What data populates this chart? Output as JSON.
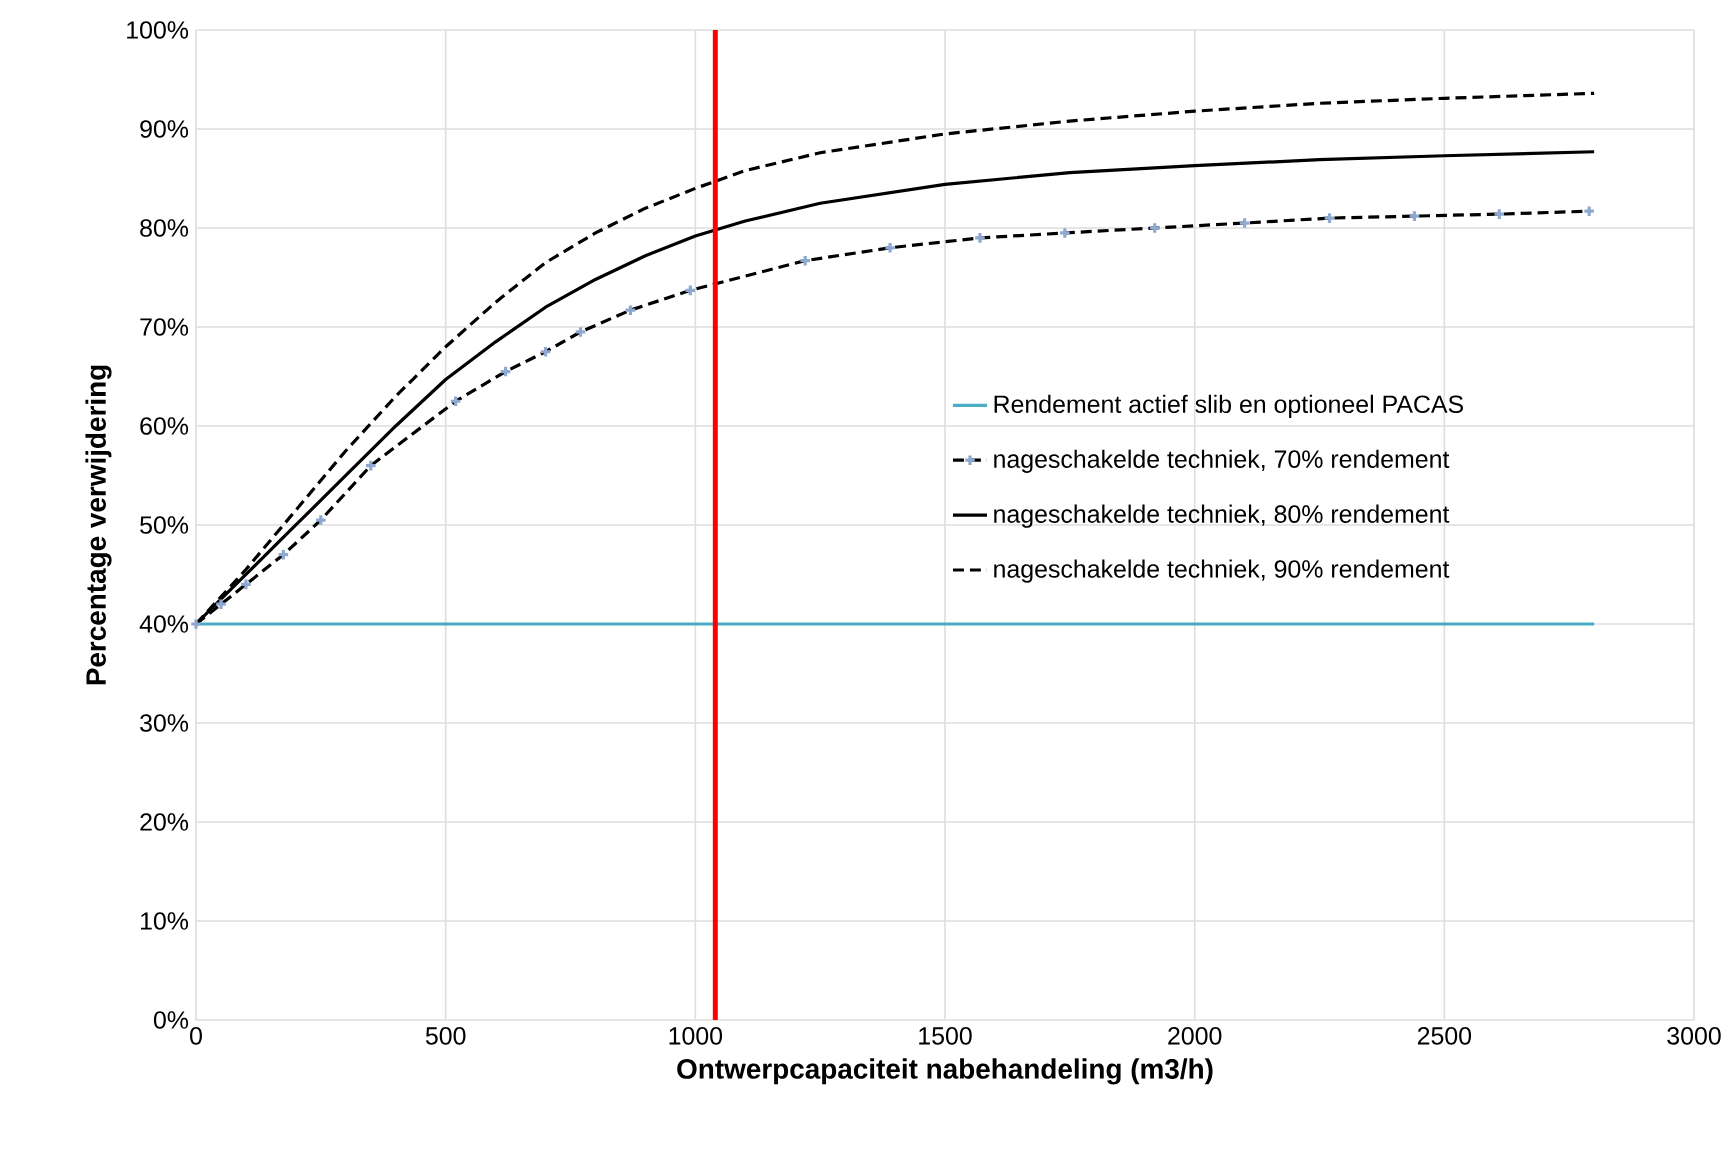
{
  "chart_data": {
    "type": "line",
    "xlabel": "Ontwerpcapaciteit nabehandeling (m3/h)",
    "ylabel": "Percentage verwijdering",
    "xlim": [
      0,
      3000
    ],
    "xticks": [
      0,
      500,
      1000,
      1500,
      2000,
      2500,
      3000
    ],
    "ylim": [
      0,
      100
    ],
    "yticks": [
      {
        "value": 0,
        "label": "0%"
      },
      {
        "value": 10,
        "label": "10%"
      },
      {
        "value": 20,
        "label": "20%"
      },
      {
        "value": 30,
        "label": "30%"
      },
      {
        "value": 40,
        "label": "40%"
      },
      {
        "value": 50,
        "label": "50%"
      },
      {
        "value": 60,
        "label": "60%"
      },
      {
        "value": 70,
        "label": "70%"
      },
      {
        "value": 80,
        "label": "80%"
      },
      {
        "value": 90,
        "label": "90%"
      },
      {
        "value": 100,
        "label": "100%"
      }
    ],
    "grid": true,
    "legend": "right",
    "ref_lines": [
      {
        "axis": "x",
        "value": 1040,
        "color": "#ff0000"
      }
    ],
    "series": [
      {
        "name": "Rendement actief slib en optioneel PACAS",
        "color": "#4bacc6",
        "line_style": "solid",
        "marker": "none",
        "x": [
          0,
          2800
        ],
        "values": [
          40,
          40
        ]
      },
      {
        "name": "nageschakelde techniek, 70% rendement",
        "color": "#000000",
        "line_style": "dashed",
        "marker": "cross",
        "x": [
          0,
          50,
          100,
          175,
          250,
          350,
          520,
          620,
          700,
          770,
          870,
          990,
          1220,
          1390,
          1570,
          1740,
          1920,
          2100,
          2270,
          2440,
          2610,
          2790
        ],
        "values": [
          40,
          42,
          44,
          47,
          50.5,
          56,
          62.5,
          65.5,
          67.5,
          69.5,
          71.7,
          73.7,
          76.7,
          78,
          79,
          79.5,
          80,
          80.5,
          81,
          81.2,
          81.4,
          81.7
        ]
      },
      {
        "name": "nageschakelde techniek, 80% rendement",
        "color": "#000000",
        "line_style": "solid",
        "marker": "none",
        "x": [
          0,
          100,
          200,
          300,
          400,
          500,
          600,
          700,
          800,
          900,
          1000,
          1100,
          1250,
          1500,
          1750,
          2000,
          2250,
          2500,
          2800
        ],
        "values": [
          40,
          45,
          50,
          55,
          60,
          64.7,
          68.5,
          72,
          74.8,
          77.2,
          79.2,
          80.7,
          82.5,
          84.4,
          85.6,
          86.3,
          86.9,
          87.3,
          87.7
        ]
      },
      {
        "name": "nageschakelde techniek, 90% rendement",
        "color": "#000000",
        "line_style": "dashed",
        "marker": "none",
        "x": [
          0,
          100,
          200,
          300,
          400,
          500,
          600,
          700,
          800,
          900,
          1000,
          1100,
          1250,
          1500,
          1750,
          2000,
          2250,
          2500,
          2800
        ],
        "values": [
          40,
          45.5,
          51.5,
          57.5,
          63,
          68,
          72.5,
          76.5,
          79.5,
          82,
          84,
          85.8,
          87.6,
          89.5,
          90.8,
          91.8,
          92.6,
          93.1,
          93.6
        ]
      }
    ]
  }
}
